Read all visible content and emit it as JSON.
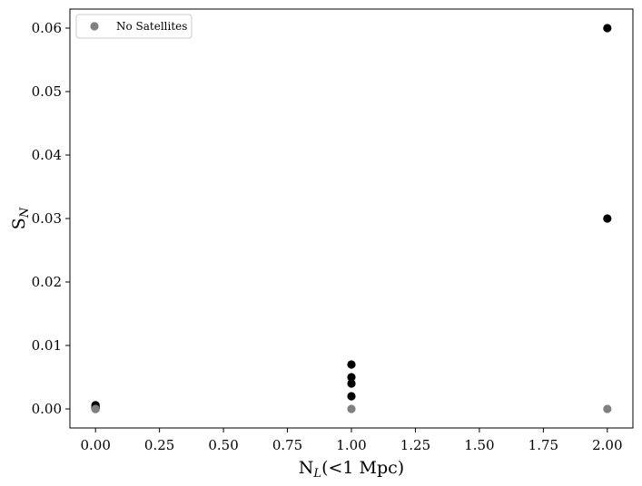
{
  "chart_data": {
    "type": "scatter",
    "xlabel": {
      "main": "N",
      "sub": "L",
      "suffix": "(<1 Mpc)"
    },
    "ylabel": {
      "main": "S",
      "sub": "N"
    },
    "xlim": [
      -0.1,
      2.1
    ],
    "ylim": [
      -0.003,
      0.063
    ],
    "xticks": [
      0.0,
      0.25,
      0.5,
      0.75,
      1.0,
      1.25,
      1.5,
      1.75,
      2.0
    ],
    "xtick_labels": [
      "0.00",
      "0.25",
      "0.50",
      "0.75",
      "1.00",
      "1.25",
      "1.50",
      "1.75",
      "2.00"
    ],
    "yticks": [
      0.0,
      0.01,
      0.02,
      0.03,
      0.04,
      0.05,
      0.06
    ],
    "ytick_labels": [
      "0.00",
      "0.01",
      "0.02",
      "0.03",
      "0.04",
      "0.05",
      "0.06"
    ],
    "grid": false,
    "legend": {
      "position": "top-left",
      "entries": [
        {
          "label": "No Satellites",
          "color": "#808080"
        }
      ]
    },
    "series": [
      {
        "color": "#000000",
        "points": [
          {
            "x": 0,
            "y": 0.0
          },
          {
            "x": 0,
            "y": 0.0001
          },
          {
            "x": 0,
            "y": 0.0002
          },
          {
            "x": 0,
            "y": 0.0003
          },
          {
            "x": 0,
            "y": 0.0005
          },
          {
            "x": 0,
            "y": 0.0006
          },
          {
            "x": 1,
            "y": 0.002
          },
          {
            "x": 1,
            "y": 0.004
          },
          {
            "x": 1,
            "y": 0.005
          },
          {
            "x": 1,
            "y": 0.007
          },
          {
            "x": 2,
            "y": 0.03
          },
          {
            "x": 2,
            "y": 0.06
          }
        ]
      },
      {
        "name": "No Satellites",
        "color": "#808080",
        "points": [
          {
            "x": 0,
            "y": 0.0
          },
          {
            "x": 1,
            "y": 0.0
          },
          {
            "x": 2,
            "y": 0.0
          }
        ]
      }
    ]
  }
}
